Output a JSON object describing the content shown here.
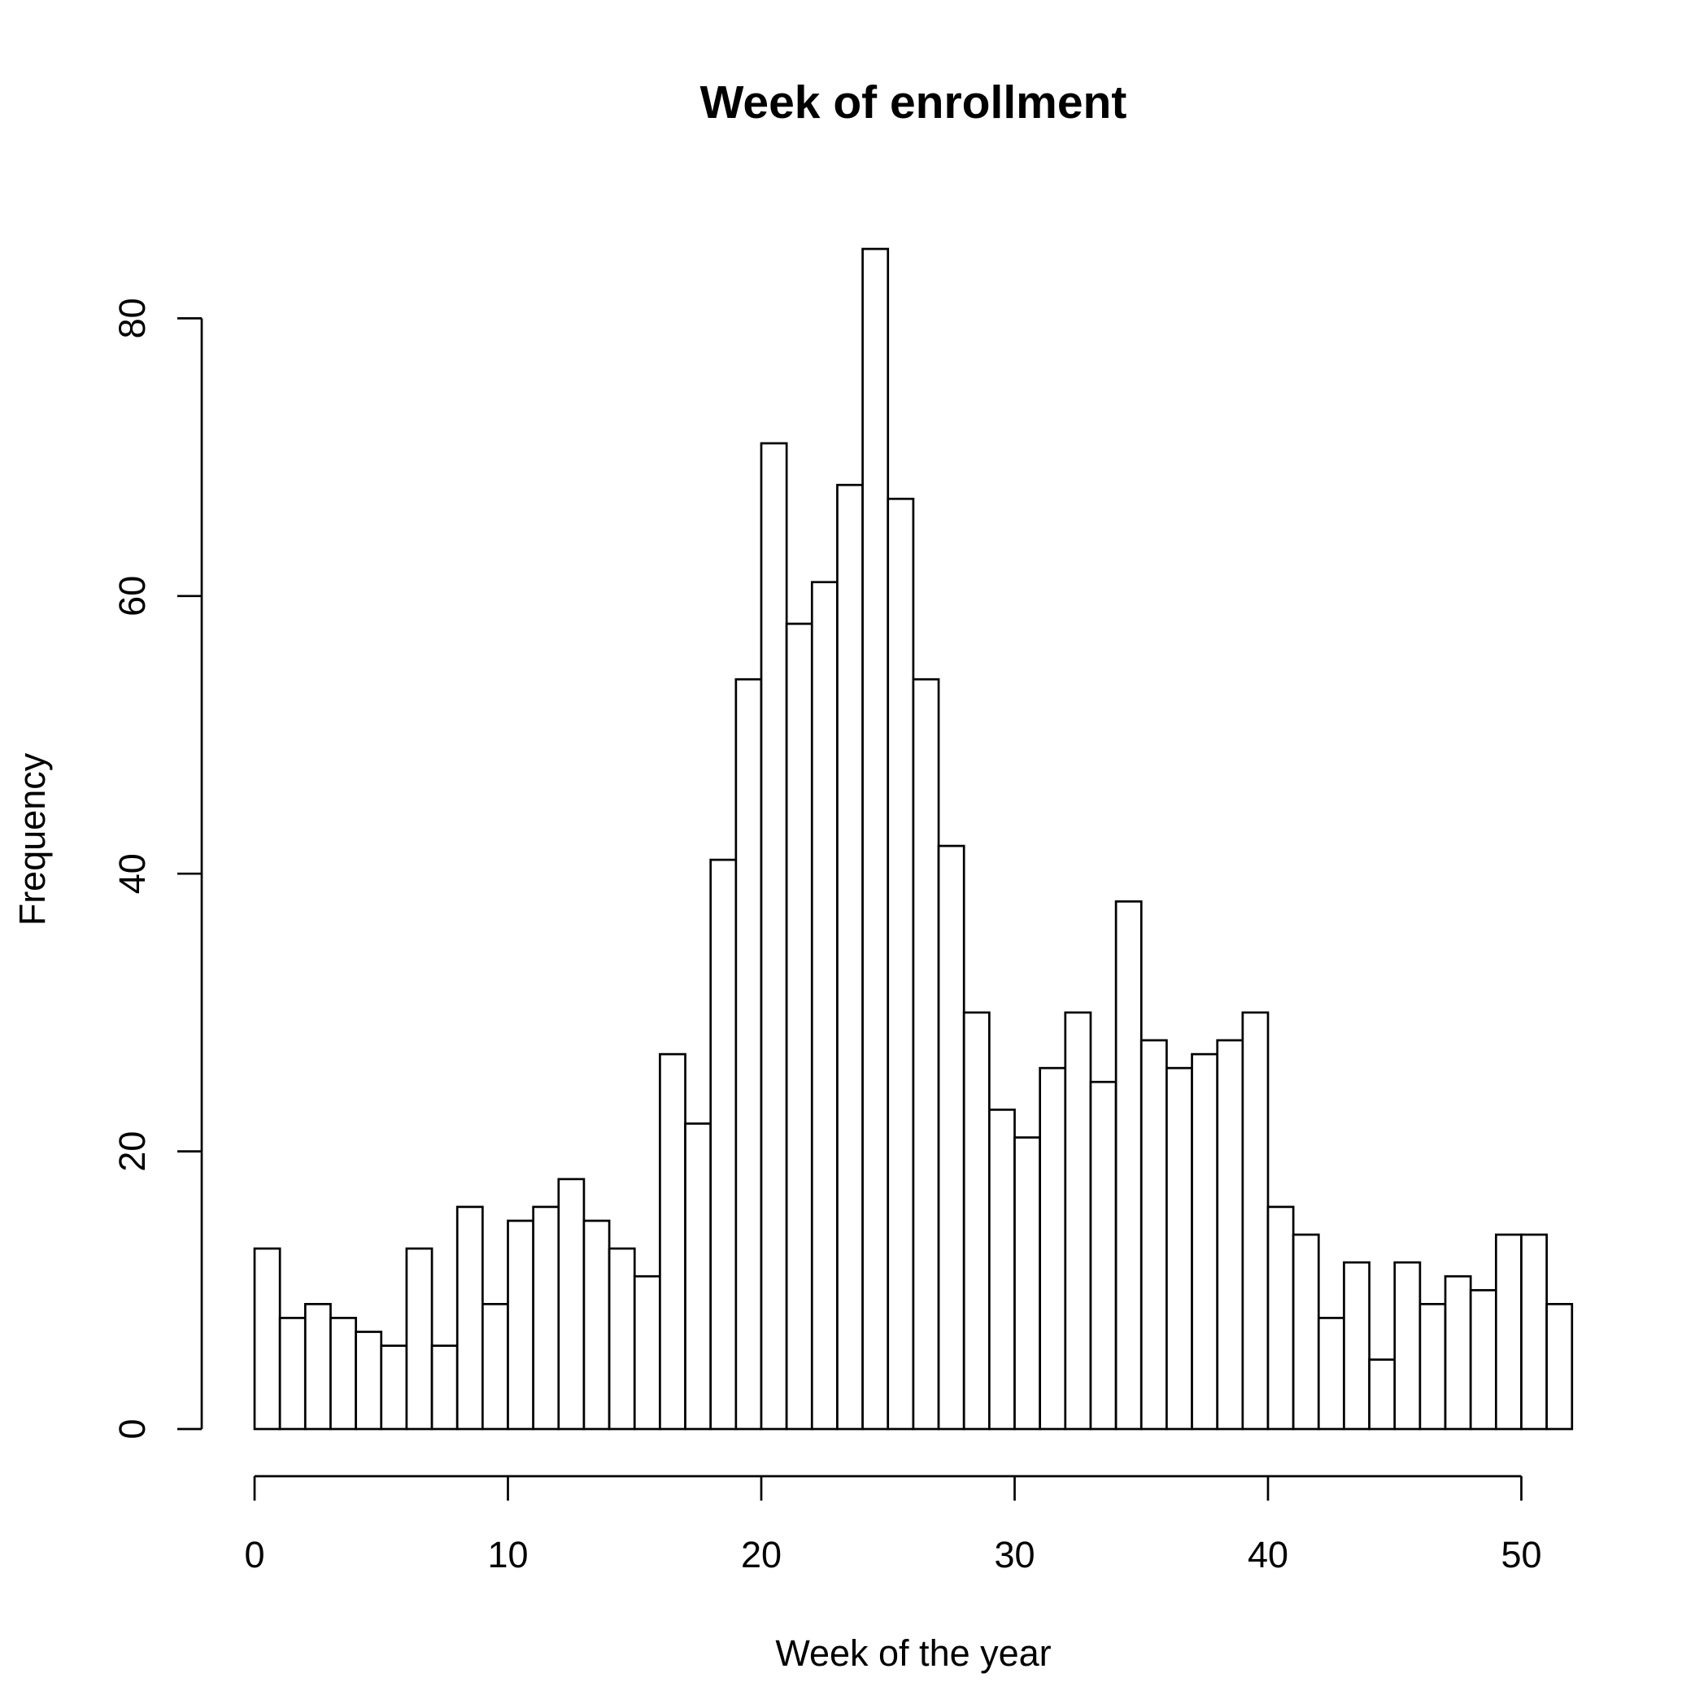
{
  "chart_data": {
    "type": "bar",
    "title": "Week of enrollment",
    "xlabel": "Week of the year",
    "ylabel": "Frequency",
    "bin_width": 1,
    "x_start": 0,
    "values": [
      13,
      8,
      9,
      8,
      7,
      6,
      13,
      6,
      16,
      9,
      15,
      16,
      18,
      15,
      13,
      11,
      27,
      22,
      41,
      54,
      71,
      58,
      61,
      68,
      85,
      67,
      54,
      42,
      30,
      23,
      21,
      26,
      30,
      25,
      38,
      28,
      26,
      27,
      28,
      30,
      16,
      14,
      8,
      12,
      5,
      12,
      9,
      11,
      10,
      14,
      14,
      9
    ],
    "xlim": [
      0,
      52
    ],
    "ylim": [
      0,
      85
    ],
    "x_ticks": [
      0,
      10,
      20,
      30,
      40,
      50
    ],
    "y_ticks": [
      0,
      20,
      40,
      60,
      80
    ],
    "grid": false,
    "legend": "none",
    "bar_fill": "#ffffff",
    "bar_stroke": "#000000"
  }
}
